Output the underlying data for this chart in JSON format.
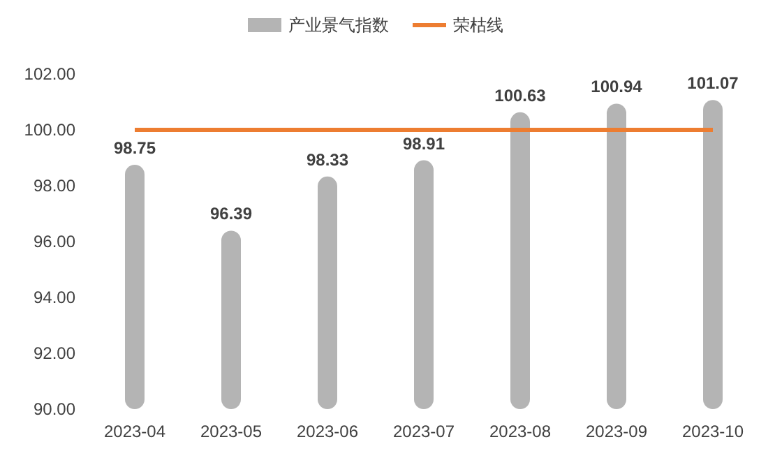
{
  "chart_data": {
    "type": "bar",
    "categories": [
      "2023-04",
      "2023-05",
      "2023-06",
      "2023-07",
      "2023-08",
      "2023-09",
      "2023-10"
    ],
    "series": [
      {
        "name": "产业景气指数",
        "color": "#b4b4b4",
        "values": [
          98.75,
          96.39,
          98.33,
          98.91,
          100.63,
          100.94,
          101.07
        ],
        "value_labels": [
          "98.75",
          "96.39",
          "98.33",
          "98.91",
          "100.63",
          "100.94",
          "101.07"
        ]
      },
      {
        "name": "荣枯线",
        "type": "line",
        "color": "#ed7d31",
        "values": [
          100,
          100,
          100,
          100,
          100,
          100,
          100
        ]
      }
    ],
    "ylim": [
      90,
      102
    ],
    "yticks": [
      {
        "value": 90,
        "label": "90.00"
      },
      {
        "value": 92,
        "label": "92.00"
      },
      {
        "value": 94,
        "label": "94.00"
      },
      {
        "value": 96,
        "label": "96.00"
      },
      {
        "value": 98,
        "label": "98.00"
      },
      {
        "value": 100,
        "label": "100.00"
      },
      {
        "value": 102,
        "label": "102.00"
      }
    ],
    "grid": false,
    "legend": "top"
  }
}
